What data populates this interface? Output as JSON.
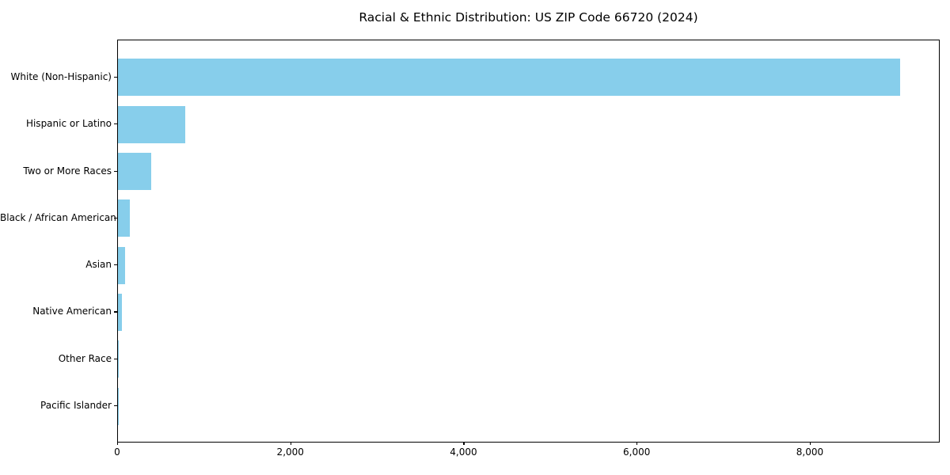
{
  "chart_data": {
    "type": "bar",
    "orientation": "horizontal",
    "title": "Racial & Ethnic Distribution: US ZIP Code 66720 (2024)",
    "categories": [
      "White (Non-Hispanic)",
      "Hispanic or Latino",
      "Two or More Races",
      "Black / African American",
      "Asian",
      "Native American",
      "Other Race",
      "Pacific Islander"
    ],
    "values": [
      9030,
      780,
      385,
      140,
      85,
      45,
      10,
      2
    ],
    "xlabel": "",
    "ylabel": "",
    "xlim": [
      0,
      9500
    ],
    "x_ticks": [
      0,
      2000,
      4000,
      6000,
      8000
    ],
    "x_tick_labels": [
      "0",
      "2,000",
      "4,000",
      "6,000",
      "8,000"
    ],
    "bar_color": "#87CEEB",
    "spine_color": "#000000",
    "grid": false,
    "legend": null,
    "category_order": "largest value at top"
  }
}
